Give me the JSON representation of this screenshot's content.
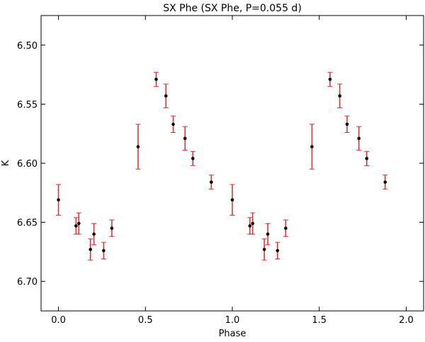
{
  "chart_data": {
    "type": "scatter",
    "title": "SX Phe  (SX Phe, P=0.055 d)",
    "xlabel": "Phase",
    "ylabel": "K",
    "xlim": [
      -0.1,
      2.1
    ],
    "ylim": [
      6.725,
      6.475
    ],
    "y_inverted": true,
    "grid": false,
    "xticks": [
      "0.0",
      "0.5",
      "1.0",
      "1.5",
      "2.0"
    ],
    "xtick_values": [
      0,
      0.5,
      1.0,
      1.5,
      2.0
    ],
    "yticks": [
      "6.50",
      "6.55",
      "6.60",
      "6.65",
      "6.70"
    ],
    "ytick_values": [
      6.5,
      6.55,
      6.6,
      6.65,
      6.7
    ],
    "marker_color": "#000000",
    "errorbar_color": "#e8282d",
    "points": [
      {
        "x": 0.0,
        "y": 6.631,
        "err": 0.013
      },
      {
        "x": 0.101,
        "y": 6.653,
        "err": 0.007
      },
      {
        "x": 0.117,
        "y": 6.651,
        "err": 0.009
      },
      {
        "x": 0.184,
        "y": 6.673,
        "err": 0.009
      },
      {
        "x": 0.204,
        "y": 6.66,
        "err": 0.009
      },
      {
        "x": 0.26,
        "y": 6.674,
        "err": 0.007
      },
      {
        "x": 0.307,
        "y": 6.655,
        "err": 0.007
      },
      {
        "x": 0.458,
        "y": 6.586,
        "err": 0.019
      },
      {
        "x": 0.562,
        "y": 6.529,
        "err": 0.006
      },
      {
        "x": 0.618,
        "y": 6.543,
        "err": 0.01
      },
      {
        "x": 0.66,
        "y": 6.567,
        "err": 0.007
      },
      {
        "x": 0.728,
        "y": 6.579,
        "err": 0.01
      },
      {
        "x": 0.773,
        "y": 6.596,
        "err": 0.006
      },
      {
        "x": 0.879,
        "y": 6.616,
        "err": 0.006
      },
      {
        "x": 1.0,
        "y": 6.631,
        "err": 0.013
      },
      {
        "x": 1.101,
        "y": 6.653,
        "err": 0.007
      },
      {
        "x": 1.117,
        "y": 6.651,
        "err": 0.009
      },
      {
        "x": 1.184,
        "y": 6.673,
        "err": 0.009
      },
      {
        "x": 1.204,
        "y": 6.66,
        "err": 0.009
      },
      {
        "x": 1.26,
        "y": 6.674,
        "err": 0.007
      },
      {
        "x": 1.307,
        "y": 6.655,
        "err": 0.007
      },
      {
        "x": 1.458,
        "y": 6.586,
        "err": 0.019
      },
      {
        "x": 1.562,
        "y": 6.529,
        "err": 0.006
      },
      {
        "x": 1.618,
        "y": 6.543,
        "err": 0.01
      },
      {
        "x": 1.66,
        "y": 6.567,
        "err": 0.007
      },
      {
        "x": 1.728,
        "y": 6.579,
        "err": 0.01
      },
      {
        "x": 1.773,
        "y": 6.596,
        "err": 0.006
      },
      {
        "x": 1.879,
        "y": 6.616,
        "err": 0.006
      }
    ]
  }
}
